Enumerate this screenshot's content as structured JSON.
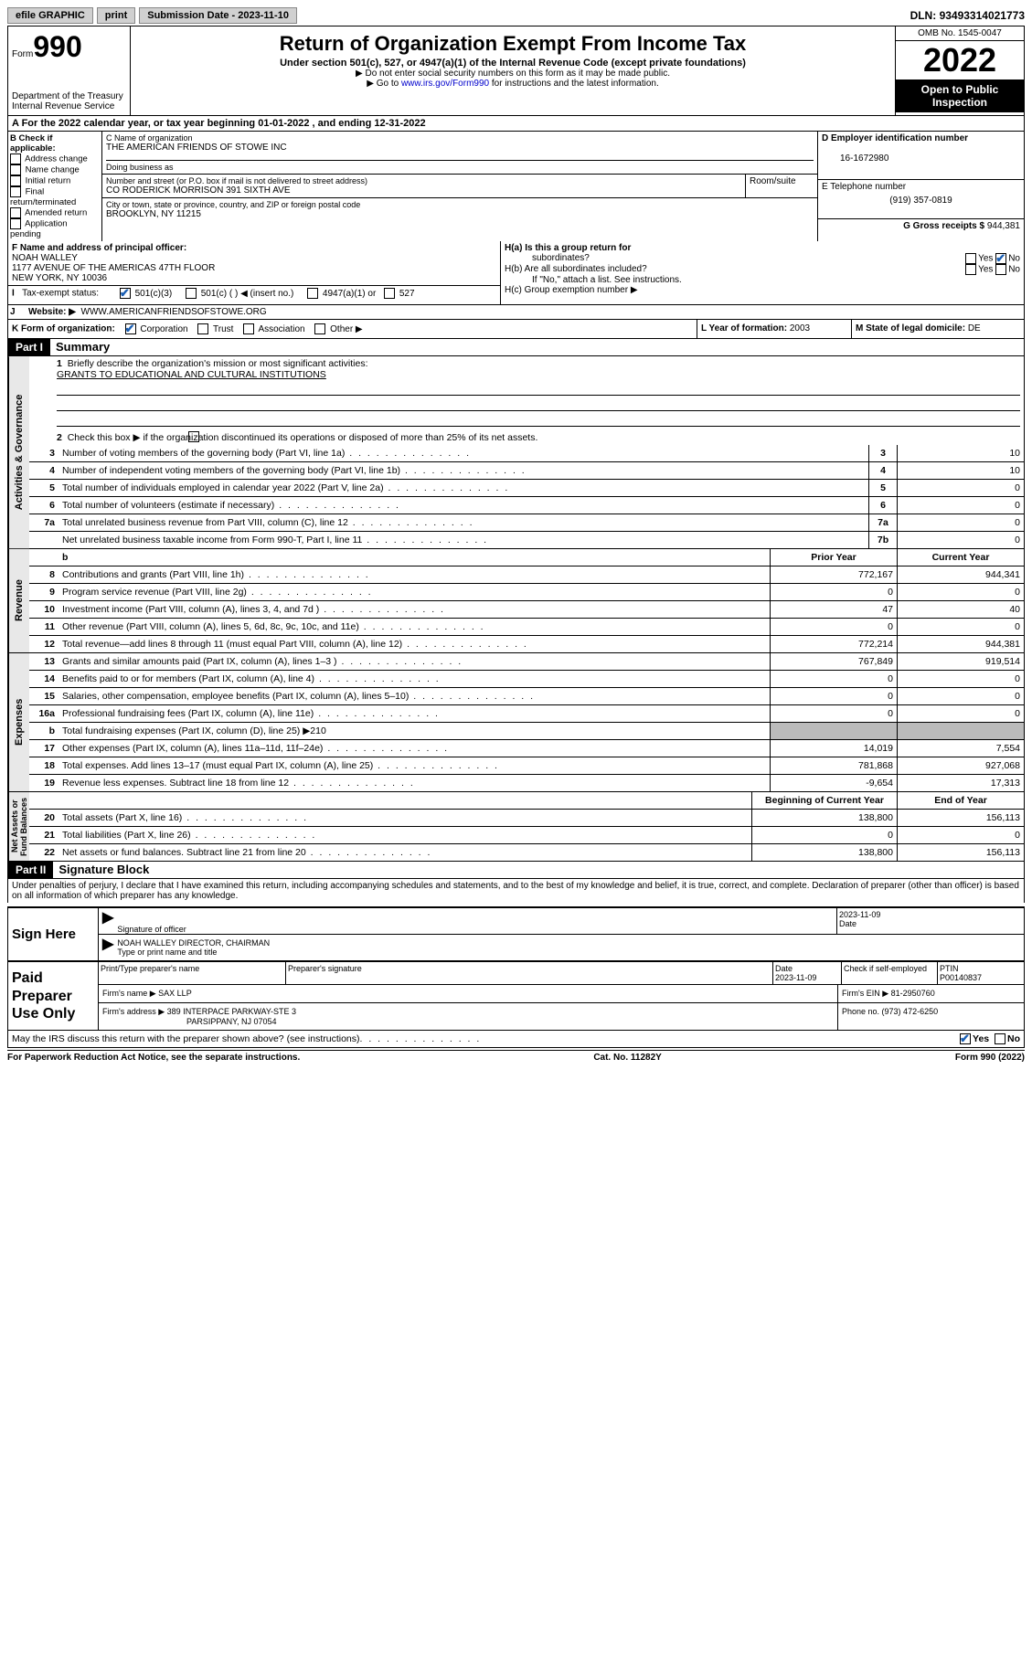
{
  "topbar": {
    "efile": "efile GRAPHIC",
    "print": "print",
    "sub_label": "Submission Date - ",
    "sub_date": "2023-11-10",
    "dln_label": "DLN: ",
    "dln": "93493314021773"
  },
  "header": {
    "form": "Form",
    "num": "990",
    "dept": "Department of the Treasury",
    "irs": "Internal Revenue Service",
    "title": "Return of Organization Exempt From Income Tax",
    "sub": "Under section 501(c), 527, or 4947(a)(1) of the Internal Revenue Code (except private foundations)",
    "note1": "▶ Do not enter social security numbers on this form as it may be made public.",
    "note2": "▶ Go to ",
    "link": "www.irs.gov/Form990",
    "note2b": " for instructions and the latest information.",
    "omb": "OMB No. 1545-0047",
    "year": "2022",
    "open": "Open to Public Inspection"
  },
  "rowA": {
    "text": "A For the 2022 calendar year, or tax year beginning ",
    "begin": "01-01-2022",
    "mid": "   , and ending ",
    "end": "12-31-2022"
  },
  "boxB": {
    "title": "B Check if applicable:",
    "items": [
      "Address change",
      "Name change",
      "Initial return",
      "Final return/terminated",
      "Amended return",
      "Application pending"
    ]
  },
  "boxC": {
    "name_lbl": "C Name of organization",
    "name": "THE AMERICAN FRIENDS OF STOWE INC",
    "dba_lbl": "Doing business as",
    "dba": "",
    "addr_lbl": "Number and street (or P.O. box if mail is not delivered to street address)",
    "room_lbl": "Room/suite",
    "addr": "CO RODERICK MORRISON 391 SIXTH AVE",
    "city_lbl": "City or town, state or province, country, and ZIP or foreign postal code",
    "city": "BROOKLYN, NY  11215"
  },
  "boxD": {
    "lbl": "D Employer identification number",
    "val": "16-1672980"
  },
  "boxE": {
    "lbl": "E Telephone number",
    "val": "(919) 357-0819"
  },
  "boxG": {
    "lbl": "G Gross receipts $",
    "val": "944,381"
  },
  "boxF": {
    "lbl": "F  Name and address of principal officer:",
    "name": "NOAH WALLEY",
    "addr1": "1177 AVENUE OF THE AMERICAS 47TH FLOOR",
    "addr2": "NEW YORK, NY  10036"
  },
  "boxH": {
    "a": "H(a)  Is this a group return for",
    "a2": "subordinates?",
    "b": "H(b)  Are all subordinates included?",
    "ifno": "If \"No,\" attach a list. See instructions.",
    "c": "H(c)  Group exemption number ▶",
    "yes": "Yes",
    "no": "No"
  },
  "rowI": {
    "lbl": "Tax-exempt status:",
    "opts": [
      "501(c)(3)",
      "501(c) (  ) ◀ (insert no.)",
      "4947(a)(1) or",
      "527"
    ]
  },
  "rowJ": {
    "lbl": "Website: ▶",
    "val": "WWW.AMERICANFRIENDSOFSTOWE.ORG"
  },
  "rowK": {
    "lbl": "K Form of organization:",
    "opts": [
      "Corporation",
      "Trust",
      "Association",
      "Other ▶"
    ]
  },
  "rowL": {
    "lbl": "L Year of formation: ",
    "val": "2003"
  },
  "rowM": {
    "lbl": "M State of legal domicile: ",
    "val": "DE"
  },
  "part1": {
    "hdr": "Part I",
    "title": "Summary"
  },
  "summary": {
    "q1": "Briefly describe the organization's mission or most significant activities:",
    "q1a": "GRANTS TO EDUCATIONAL AND CULTURAL INSTITUTIONS",
    "q2": "Check this box ▶        if the organization discontinued its operations or disposed of more than 25% of its net assets.",
    "rows_gov": [
      {
        "n": "3",
        "d": "Number of voting members of the governing body (Part VI, line 1a)",
        "b": "3",
        "v": "10"
      },
      {
        "n": "4",
        "d": "Number of independent voting members of the governing body (Part VI, line 1b)",
        "b": "4",
        "v": "10"
      },
      {
        "n": "5",
        "d": "Total number of individuals employed in calendar year 2022 (Part V, line 2a)",
        "b": "5",
        "v": "0"
      },
      {
        "n": "6",
        "d": "Total number of volunteers (estimate if necessary)",
        "b": "6",
        "v": "0"
      },
      {
        "n": "7a",
        "d": "Total unrelated business revenue from Part VIII, column (C), line 12",
        "b": "7a",
        "v": "0"
      },
      {
        "n": "",
        "d": "Net unrelated business taxable income from Form 990-T, Part I, line 11",
        "b": "7b",
        "v": "0"
      }
    ],
    "hdr_prior": "Prior Year",
    "hdr_curr": "Current Year",
    "rows_rev": [
      {
        "n": "8",
        "d": "Contributions and grants (Part VIII, line 1h)",
        "p": "772,167",
        "c": "944,341"
      },
      {
        "n": "9",
        "d": "Program service revenue (Part VIII, line 2g)",
        "p": "0",
        "c": "0"
      },
      {
        "n": "10",
        "d": "Investment income (Part VIII, column (A), lines 3, 4, and 7d )",
        "p": "47",
        "c": "40"
      },
      {
        "n": "11",
        "d": "Other revenue (Part VIII, column (A), lines 5, 6d, 8c, 9c, 10c, and 11e)",
        "p": "0",
        "c": "0"
      },
      {
        "n": "12",
        "d": "Total revenue—add lines 8 through 11 (must equal Part VIII, column (A), line 12)",
        "p": "772,214",
        "c": "944,381"
      }
    ],
    "rows_exp": [
      {
        "n": "13",
        "d": "Grants and similar amounts paid (Part IX, column (A), lines 1–3 )",
        "p": "767,849",
        "c": "919,514"
      },
      {
        "n": "14",
        "d": "Benefits paid to or for members (Part IX, column (A), line 4)",
        "p": "0",
        "c": "0"
      },
      {
        "n": "15",
        "d": "Salaries, other compensation, employee benefits (Part IX, column (A), lines 5–10)",
        "p": "0",
        "c": "0"
      },
      {
        "n": "16a",
        "d": "Professional fundraising fees (Part IX, column (A), line 11e)",
        "p": "0",
        "c": "0"
      },
      {
        "n": "b",
        "d": "Total fundraising expenses (Part IX, column (D), line 25) ▶210",
        "p": "",
        "c": "",
        "gray": true
      },
      {
        "n": "17",
        "d": "Other expenses (Part IX, column (A), lines 11a–11d, 11f–24e)",
        "p": "14,019",
        "c": "7,554"
      },
      {
        "n": "18",
        "d": "Total expenses. Add lines 13–17 (must equal Part IX, column (A), line 25)",
        "p": "781,868",
        "c": "927,068"
      },
      {
        "n": "19",
        "d": "Revenue less expenses. Subtract line 18 from line 12",
        "p": "-9,654",
        "c": "17,313"
      }
    ],
    "hdr_begin": "Beginning of Current Year",
    "hdr_end": "End of Year",
    "rows_net": [
      {
        "n": "20",
        "d": "Total assets (Part X, line 16)",
        "p": "138,800",
        "c": "156,113"
      },
      {
        "n": "21",
        "d": "Total liabilities (Part X, line 26)",
        "p": "0",
        "c": "0"
      },
      {
        "n": "22",
        "d": "Net assets or fund balances. Subtract line 21 from line 20",
        "p": "138,800",
        "c": "156,113"
      }
    ]
  },
  "part2": {
    "hdr": "Part II",
    "title": "Signature Block",
    "decl": "Under penalties of perjury, I declare that I have examined this return, including accompanying schedules and statements, and to the best of my knowledge and belief, it is true, correct, and complete. Declaration of preparer (other than officer) is based on all information of which preparer has any knowledge."
  },
  "sign": {
    "here": "Sign Here",
    "sig_lbl": "Signature of officer",
    "date_lbl": "Date",
    "date": "2023-11-09",
    "name": "NOAH WALLEY  DIRECTOR, CHAIRMAN",
    "name_lbl": "Type or print name and title"
  },
  "paid": {
    "title": "Paid Preparer Use Only",
    "c1": "Print/Type preparer's name",
    "c2": "Preparer's signature",
    "c3": "Date",
    "c3v": "2023-11-09",
    "c4": "Check         if self-employed",
    "c5": "PTIN",
    "c5v": "P00140837",
    "firm_lbl": "Firm's name    ▶",
    "firm": "SAX LLP",
    "ein_lbl": "Firm's EIN ▶",
    "ein": "81-2950760",
    "addr_lbl": "Firm's address ▶",
    "addr": "389 INTERPACE PARKWAY-STE 3",
    "addr2": "PARSIPPANY, NJ  07054",
    "phone_lbl": "Phone no. ",
    "phone": "(973) 472-6250"
  },
  "discuss": "May the IRS discuss this return with the preparer shown above? (see instructions)",
  "footer": {
    "l": "For Paperwork Reduction Act Notice, see the separate instructions.",
    "m": "Cat. No. 11282Y",
    "r": "Form 990 (2022)"
  }
}
